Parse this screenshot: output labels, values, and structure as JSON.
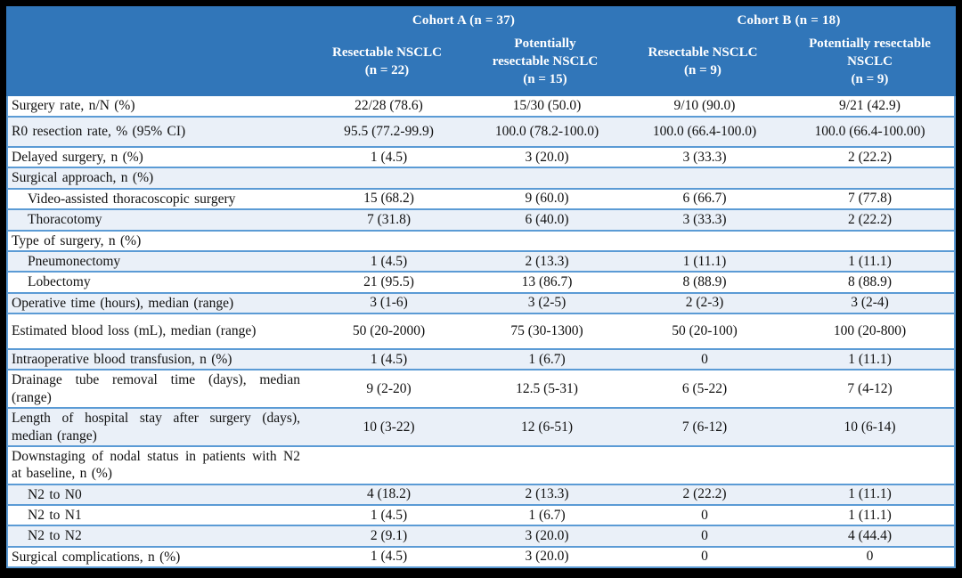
{
  "table": {
    "header": {
      "cohort_a": "Cohort A (n = 37)",
      "cohort_b": "Cohort B (n = 18)",
      "columns": [
        {
          "lines": [
            "Resectable NSCLC",
            "(n = 22)"
          ]
        },
        {
          "lines": [
            "Potentially",
            "resectable NSCLC",
            "(n = 15)"
          ]
        },
        {
          "lines": [
            "Resectable NSCLC",
            "(n = 9)"
          ]
        },
        {
          "lines": [
            "Potentially resectable",
            "NSCLC",
            "(n = 9)"
          ]
        }
      ]
    },
    "rows": [
      {
        "label": "Surgery rate, n/N (%)",
        "indent": false,
        "values": [
          "22/28 (78.6)",
          "15/30 (50.0)",
          "9/10 (90.0)",
          "9/21 (42.9)"
        ]
      },
      {
        "label": "R0 resection rate, % (95% CI)",
        "indent": false,
        "size": "mid",
        "values": [
          "95.5 (77.2-99.9)",
          "100.0 (78.2-100.0)",
          "100.0 (66.4-100.0)",
          "100.0 (66.4-100.00)"
        ]
      },
      {
        "label": "Delayed surgery, n (%)",
        "indent": false,
        "values": [
          "1 (4.5)",
          "3 (20.0)",
          "3 (33.3)",
          "2 (22.2)"
        ]
      },
      {
        "label": "Surgical approach, n (%)",
        "indent": false,
        "values": [
          "",
          "",
          "",
          ""
        ]
      },
      {
        "label": "Video-assisted thoracoscopic surgery",
        "indent": true,
        "values": [
          "15 (68.2)",
          "9 (60.0)",
          "6 (66.7)",
          "7 (77.8)"
        ]
      },
      {
        "label": "Thoracotomy",
        "indent": true,
        "values": [
          "7 (31.8)",
          "6 (40.0)",
          "3 (33.3)",
          "2 (22.2)"
        ]
      },
      {
        "label": "Type of surgery, n (%)",
        "indent": false,
        "values": [
          "",
          "",
          "",
          ""
        ]
      },
      {
        "label": "Pneumonectomy",
        "indent": true,
        "values": [
          "1 (4.5)",
          "2 (13.3)",
          "1 (11.1)",
          "1 (11.1)"
        ]
      },
      {
        "label": "Lobectomy",
        "indent": true,
        "values": [
          "21 (95.5)",
          "13 (86.7)",
          "8 (88.9)",
          "8 (88.9)"
        ]
      },
      {
        "label": "Operative time (hours), median (range)",
        "indent": false,
        "values": [
          "3 (1-6)",
          "3 (2-5)",
          "2 (2-3)",
          "3 (2-4)"
        ]
      },
      {
        "label": "Estimated blood loss (mL), median (range)",
        "indent": false,
        "size": "tall",
        "values": [
          "50 (20-2000)",
          "75 (30-1300)",
          "50 (20-100)",
          "100 (20-800)"
        ]
      },
      {
        "label": "Intraoperative blood transfusion, n (%)",
        "indent": false,
        "values": [
          "1 (4.5)",
          "1 (6.7)",
          "0",
          "1 (11.1)"
        ]
      },
      {
        "label": "Drainage tube removal time (days), median (range)",
        "indent": false,
        "size": "tall",
        "values": [
          "9 (2-20)",
          "12.5 (5-31)",
          "6 (5-22)",
          "7 (4-12)"
        ]
      },
      {
        "label": "Length of hospital stay after surgery (days), median (range)",
        "indent": false,
        "size": "tall",
        "values": [
          "10 (3-22)",
          "12 (6-51)",
          "7 (6-12)",
          "10 (6-14)"
        ]
      },
      {
        "label": "Downstaging of nodal status in patients with N2 at baseline, n (%)",
        "indent": false,
        "size": "tall",
        "values": [
          "",
          "",
          "",
          ""
        ]
      },
      {
        "label": "N2 to N0",
        "indent": true,
        "values": [
          "4 (18.2)",
          "2 (13.3)",
          "2 (22.2)",
          "1 (11.1)"
        ]
      },
      {
        "label": "N2 to N1",
        "indent": true,
        "values": [
          "1 (4.5)",
          "1 (6.7)",
          "0",
          "1 (11.1)"
        ]
      },
      {
        "label": "N2 to N2",
        "indent": true,
        "values": [
          "2 (9.1)",
          "3 (20.0)",
          "0",
          "4 (44.4)"
        ]
      },
      {
        "label": "Surgical complications, n (%)",
        "indent": false,
        "values": [
          "1 (4.5)",
          "3 (20.0)",
          "0",
          "0"
        ]
      }
    ],
    "colors": {
      "header_bg": "#3176B9",
      "header_text": "#FFFFFF",
      "row_bg": "#FFFFFF",
      "row_alt_bg": "#EAF0F8",
      "grid_line": "#5B9BD5",
      "frame": "#000000"
    }
  }
}
